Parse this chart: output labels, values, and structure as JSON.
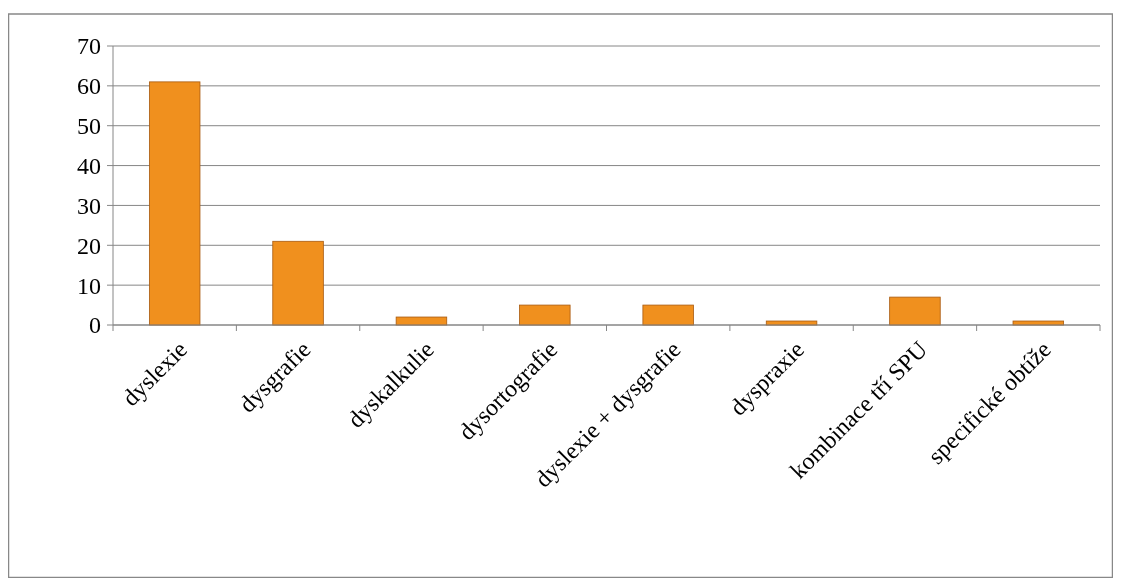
{
  "chart_data": {
    "type": "bar",
    "categories": [
      "dyslexie",
      "dysgrafie",
      "dyskalkulie",
      "dysortografie",
      "dyslexie + dysgrafie",
      "dyspraxie",
      "kombinace tří SPU",
      "specifické obtíže"
    ],
    "values": [
      61,
      21,
      2,
      5,
      5,
      1,
      7,
      1
    ],
    "color": "#f0901e",
    "ylim": [
      0,
      70
    ],
    "yticks": [
      0,
      10,
      20,
      30,
      40,
      50,
      60,
      70
    ],
    "grid": "y"
  }
}
